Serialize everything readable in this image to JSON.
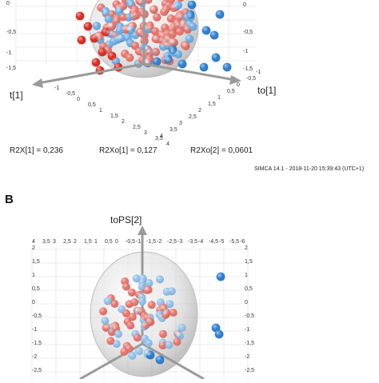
{
  "chart_data": [
    {
      "type": "scatter",
      "dims": 3,
      "title": "",
      "axes": {
        "x1": {
          "label": "t[1]",
          "ticks": [
            "-1",
            "-0,5",
            "0",
            "0,5",
            "1",
            "1,5",
            "2",
            "2,5",
            "3",
            "3,5",
            "4"
          ]
        },
        "x2": {
          "label": "to[1]",
          "ticks": [
            "4",
            "3,5",
            "3",
            "2,5",
            "2",
            "1,5",
            "1",
            "0,5",
            "0",
            "-0,5",
            "-1"
          ]
        },
        "z": {
          "label": "",
          "ticks": [
            "0",
            "-0,5",
            "-1",
            "-1,5"
          ]
        }
      },
      "stats": [
        "R2X[1] = 0,236",
        "R2Xo[1] = 0,127",
        "R2Xo[2] = 0,0601"
      ],
      "footer": "SIMCA 14.1 - 2018-11-20 15:39:43 (UTC+1)",
      "confidence_ellipsoid": true,
      "series": [
        {
          "name": "",
          "color": "#e8726a"
        },
        {
          "name": "",
          "color": "#6aaee6"
        },
        {
          "name": "",
          "color": "#d92b20"
        },
        {
          "name": "",
          "color": "#2a7ed0"
        }
      ]
    },
    {
      "type": "scatter",
      "dims": 3,
      "panel_label": "B",
      "title": "",
      "axes": {
        "z": {
          "label": "toPS[2]"
        },
        "x1": {
          "ticks": [
            "4",
            "3,5",
            "3",
            "2,5",
            "2",
            "1,5",
            "1",
            "0,5",
            "0",
            "-0,5",
            "-1",
            "-1,5",
            "-2",
            "-2,5",
            "-3",
            "-3,5",
            "-4",
            "-4,5",
            "-5",
            "-5,5",
            "-6"
          ]
        },
        "zticks": [
          "2",
          "1,5",
          "1",
          "0,5",
          "0",
          "-0,5",
          "-1",
          "-1,5",
          "-2",
          "-2,5"
        ]
      },
      "confidence_ellipsoid": true,
      "series": [
        {
          "name": "",
          "color": "#e8726a"
        },
        {
          "name": "",
          "color": "#8fc0ea"
        },
        {
          "name": "",
          "color": "#2a7ed0"
        }
      ]
    }
  ],
  "colors": {
    "axis": "#9a9a9a",
    "grid": "#dcdcdc",
    "sphere": "#c8c8c8"
  }
}
